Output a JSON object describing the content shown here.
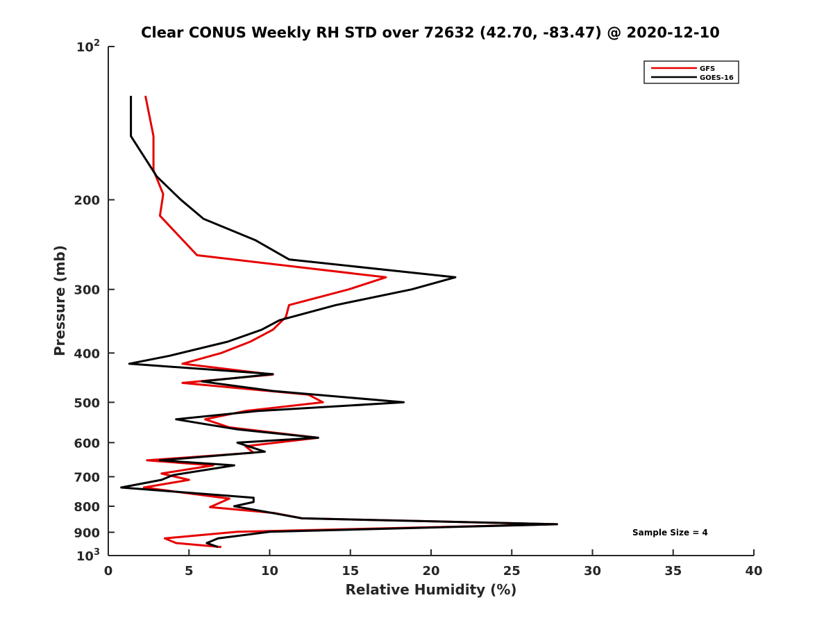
{
  "chart_data": {
    "type": "line",
    "title": "Clear CONUS Weekly RH STD over 72632 (42.70, -83.47) @ 2020-12-10",
    "xlabel": "Relative Humidity (%)",
    "ylabel": "Pressure (mb)",
    "xlim": [
      0,
      40
    ],
    "ylim": [
      100,
      1000
    ],
    "y_scale": "log",
    "y_reversed": true,
    "grid": false,
    "legend_position": "top-right",
    "x_ticks": [
      "0",
      "5",
      "10",
      "15",
      "20",
      "25",
      "30",
      "35",
      "40"
    ],
    "y_ticks": [
      {
        "value": 100,
        "base": "10",
        "exp": "2"
      },
      {
        "value": 200,
        "label": "200"
      },
      {
        "value": 300,
        "label": "300"
      },
      {
        "value": 400,
        "label": "400"
      },
      {
        "value": 500,
        "label": "500"
      },
      {
        "value": 600,
        "label": "600"
      },
      {
        "value": 700,
        "label": "700"
      },
      {
        "value": 800,
        "label": "800"
      },
      {
        "value": 900,
        "label": "900"
      },
      {
        "value": 1000,
        "base": "10",
        "exp": "3"
      }
    ],
    "series": [
      {
        "name": "GFS",
        "color": "#e60000",
        "points": [
          [
            2.3,
            125
          ],
          [
            2.8,
            150
          ],
          [
            2.8,
            175
          ],
          [
            3.4,
            195
          ],
          [
            3.2,
            215
          ],
          [
            5.5,
            257
          ],
          [
            17.2,
            284
          ],
          [
            14.9,
            300
          ],
          [
            11.2,
            322
          ],
          [
            11.0,
            340
          ],
          [
            10.2,
            360
          ],
          [
            8.8,
            380
          ],
          [
            7.0,
            400
          ],
          [
            4.6,
            420
          ],
          [
            10.2,
            441
          ],
          [
            4.6,
            458
          ],
          [
            12.4,
            483
          ],
          [
            13.3,
            500
          ],
          [
            8.5,
            520
          ],
          [
            6.0,
            540
          ],
          [
            7.5,
            560
          ],
          [
            13.0,
            587
          ],
          [
            8.5,
            610
          ],
          [
            9.0,
            628
          ],
          [
            2.4,
            650
          ],
          [
            6.5,
            665
          ],
          [
            3.3,
            690
          ],
          [
            5.0,
            710
          ],
          [
            2.2,
            735
          ],
          [
            7.5,
            773
          ],
          [
            6.3,
            803
          ],
          [
            10.3,
            825
          ],
          [
            12.0,
            845
          ],
          [
            27.8,
            868
          ],
          [
            8.0,
            898
          ],
          [
            3.5,
            925
          ],
          [
            4.2,
            945
          ],
          [
            7.0,
            962
          ]
        ]
      },
      {
        "name": "GOES-16",
        "color": "#000000",
        "points": [
          [
            1.4,
            125
          ],
          [
            1.4,
            150
          ],
          [
            3.0,
            180
          ],
          [
            4.5,
            200
          ],
          [
            5.9,
            218
          ],
          [
            9.1,
            240
          ],
          [
            11.2,
            262
          ],
          [
            21.5,
            284
          ],
          [
            18.8,
            300
          ],
          [
            14.1,
            322
          ],
          [
            10.6,
            345
          ],
          [
            9.5,
            360
          ],
          [
            7.4,
            380
          ],
          [
            3.8,
            405
          ],
          [
            1.3,
            420
          ],
          [
            10.2,
            440
          ],
          [
            5.8,
            455
          ],
          [
            10.2,
            475
          ],
          [
            18.3,
            500
          ],
          [
            9.3,
            520
          ],
          [
            4.2,
            540
          ],
          [
            8.0,
            565
          ],
          [
            13.0,
            587
          ],
          [
            8.0,
            600
          ],
          [
            9.7,
            625
          ],
          [
            3.2,
            650
          ],
          [
            7.8,
            665
          ],
          [
            4.0,
            695
          ],
          [
            3.3,
            710
          ],
          [
            0.8,
            735
          ],
          [
            9.0,
            770
          ],
          [
            9.0,
            785
          ],
          [
            7.8,
            800
          ],
          [
            10.2,
            825
          ],
          [
            12.0,
            845
          ],
          [
            27.8,
            868
          ],
          [
            10.0,
            898
          ],
          [
            6.8,
            925
          ],
          [
            6.1,
            945
          ],
          [
            6.8,
            962
          ]
        ]
      }
    ],
    "legend": [
      "GFS",
      "GOES-16"
    ],
    "annotation": "Sample Size = 4"
  }
}
